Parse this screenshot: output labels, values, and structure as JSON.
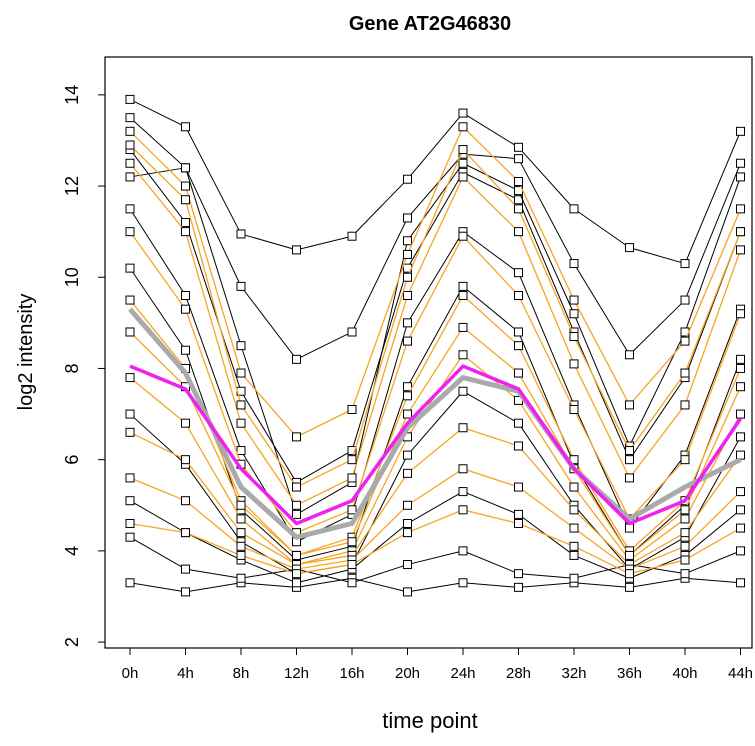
{
  "chart_data": {
    "type": "line",
    "title": "Gene AT2G46830",
    "x_label": "time point",
    "y_label": "log2 intensity",
    "categories": [
      "0h",
      "4h",
      "8h",
      "12h",
      "16h",
      "20h",
      "24h",
      "28h",
      "32h",
      "36h",
      "40h",
      "44h"
    ],
    "ylim": [
      1.87,
      14.83
    ],
    "yticks": [
      2,
      4,
      6,
      8,
      10,
      12,
      14
    ],
    "series": [
      {
        "color": "#000000",
        "marker": "square",
        "line_width": 1,
        "values": [
          13.9,
          13.3,
          10.95,
          10.6,
          10.9,
          12.15,
          13.6,
          12.85,
          11.5,
          10.65,
          10.3,
          13.2
        ]
      },
      {
        "color": "#000000",
        "marker": "square",
        "line_width": 1,
        "values": [
          13.5,
          12.4,
          9.8,
          8.2,
          8.8,
          11.3,
          12.7,
          12.6,
          10.3,
          8.3,
          9.5,
          12.5
        ]
      },
      {
        "color": "#000000",
        "marker": "square",
        "line_width": 1,
        "values": [
          12.8,
          11.2,
          7.5,
          5.5,
          6.2,
          10.2,
          12.3,
          11.7,
          8.8,
          6.0,
          7.8,
          11.0
        ]
      },
      {
        "color": "#000000",
        "marker": "square",
        "line_width": 1,
        "values": [
          11.5,
          9.6,
          6.2,
          4.2,
          4.8,
          9.0,
          11.0,
          10.1,
          7.2,
          4.5,
          6.1,
          9.3
        ]
      },
      {
        "color": "#000000",
        "marker": "square",
        "line_width": 1,
        "values": [
          10.2,
          8.4,
          4.9,
          3.8,
          4.1,
          7.6,
          9.8,
          8.8,
          5.9,
          3.9,
          5.0,
          8.2
        ]
      },
      {
        "color": "#000000",
        "marker": "square",
        "line_width": 1,
        "values": [
          7.0,
          5.9,
          4.2,
          3.5,
          3.7,
          6.1,
          7.5,
          6.8,
          5.0,
          3.6,
          4.3,
          6.5
        ]
      },
      {
        "color": "#000000",
        "marker": "square",
        "line_width": 1,
        "values": [
          3.3,
          3.1,
          3.3,
          3.2,
          3.4,
          3.1,
          3.3,
          3.2,
          3.3,
          3.2,
          3.4,
          3.3
        ]
      },
      {
        "color": "#000000",
        "marker": "square",
        "line_width": 1,
        "values": [
          4.3,
          3.6,
          3.4,
          3.6,
          3.3,
          3.7,
          4.0,
          3.5,
          3.4,
          3.7,
          3.5,
          4.0
        ]
      },
      {
        "color": "#000000",
        "marker": "square",
        "line_width": 1,
        "values": [
          12.2,
          12.4,
          8.5,
          4.8,
          5.5,
          10.8,
          12.5,
          11.9,
          9.2,
          6.3,
          8.8,
          12.2
        ]
      },
      {
        "color": "#000000",
        "marker": "square",
        "line_width": 1,
        "values": [
          5.1,
          4.4,
          3.8,
          3.3,
          3.6,
          4.6,
          5.3,
          4.8,
          3.9,
          3.4,
          3.9,
          4.9
        ]
      },
      {
        "color": "#f5a623",
        "marker": "square",
        "line_width": 1.3,
        "values": [
          13.2,
          12.0,
          7.9,
          6.5,
          7.1,
          10.5,
          13.3,
          12.1,
          9.5,
          7.2,
          8.6,
          11.5
        ]
      },
      {
        "color": "#f5a623",
        "marker": "square",
        "line_width": 1.3,
        "values": [
          12.5,
          11.0,
          6.8,
          5.0,
          5.6,
          9.6,
          12.2,
          11.0,
          8.1,
          5.6,
          7.2,
          10.6
        ]
      },
      {
        "color": "#f5a623",
        "marker": "square",
        "line_width": 1.3,
        "values": [
          11.0,
          9.3,
          5.9,
          4.4,
          4.9,
          8.6,
          10.9,
          9.6,
          7.1,
          4.7,
          6.0,
          9.2
        ]
      },
      {
        "color": "#f5a623",
        "marker": "square",
        "line_width": 1.3,
        "values": [
          9.5,
          8.0,
          5.1,
          3.9,
          4.3,
          7.4,
          9.6,
          8.5,
          6.0,
          4.0,
          5.1,
          8.0
        ]
      },
      {
        "color": "#f5a623",
        "marker": "square",
        "line_width": 1.3,
        "values": [
          7.8,
          6.8,
          4.7,
          3.7,
          4.0,
          6.5,
          8.3,
          7.3,
          5.4,
          3.8,
          4.7,
          7.0
        ]
      },
      {
        "color": "#f5a623",
        "marker": "square",
        "line_width": 1.3,
        "values": [
          6.6,
          6.0,
          4.4,
          3.7,
          3.9,
          5.7,
          6.7,
          6.3,
          4.9,
          3.7,
          4.4,
          6.1
        ]
      },
      {
        "color": "#f5a623",
        "marker": "square",
        "line_width": 1.3,
        "values": [
          5.6,
          5.1,
          4.1,
          3.6,
          3.8,
          5.0,
          5.8,
          5.4,
          4.5,
          3.6,
          4.1,
          5.3
        ]
      },
      {
        "color": "#f5a623",
        "marker": "square",
        "line_width": 1.3,
        "values": [
          4.6,
          4.4,
          3.9,
          3.5,
          3.7,
          4.4,
          4.9,
          4.6,
          4.1,
          3.5,
          3.8,
          4.5
        ]
      },
      {
        "color": "#f5a623",
        "marker": "square",
        "line_width": 1.3,
        "values": [
          12.9,
          11.7,
          7.2,
          5.4,
          6.0,
          10.0,
          12.8,
          11.5,
          8.7,
          6.2,
          7.9,
          11.0
        ]
      },
      {
        "color": "#f5a623",
        "marker": "square",
        "line_width": 1.3,
        "values": [
          8.8,
          7.6,
          5.0,
          3.9,
          4.2,
          7.0,
          8.9,
          7.9,
          5.8,
          3.9,
          4.9,
          7.6
        ]
      },
      {
        "color": "#aaaaaa",
        "line_width": 5,
        "values": [
          9.3,
          7.9,
          5.4,
          4.3,
          4.6,
          6.7,
          7.8,
          7.5,
          5.8,
          4.7,
          5.4,
          6.0
        ]
      },
      {
        "color": "#ee22ee",
        "line_width": 3.5,
        "values": [
          8.05,
          7.55,
          5.8,
          4.6,
          5.1,
          6.8,
          8.05,
          7.55,
          5.8,
          4.6,
          5.1,
          6.9
        ]
      }
    ]
  }
}
